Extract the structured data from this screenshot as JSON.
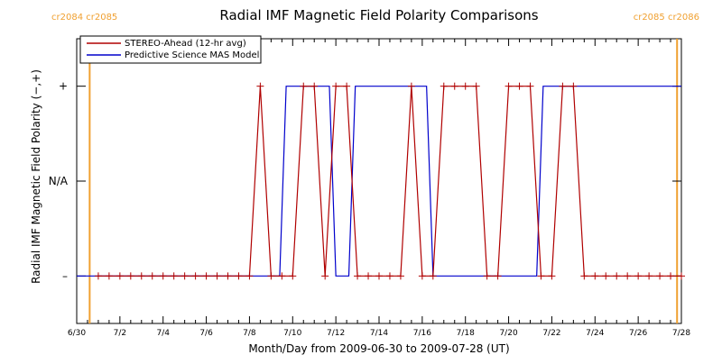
{
  "chart_data": {
    "type": "line",
    "title": "Radial IMF Magnetic Field Polarity Comparisons",
    "xlabel": "Month/Day from 2009-06-30 to 2009-07-28 (UT)",
    "ylabel": "Radial IMF Magnetic Field Polarity (−,+)",
    "x_range_days": [
      0,
      28
    ],
    "x_ticks": [
      {
        "day": 0,
        "label": "6/30"
      },
      {
        "day": 2,
        "label": "7/2"
      },
      {
        "day": 4,
        "label": "7/4"
      },
      {
        "day": 6,
        "label": "7/6"
      },
      {
        "day": 8,
        "label": "7/8"
      },
      {
        "day": 10,
        "label": "7/10"
      },
      {
        "day": 12,
        "label": "7/12"
      },
      {
        "day": 14,
        "label": "7/14"
      },
      {
        "day": 16,
        "label": "7/16"
      },
      {
        "day": 18,
        "label": "7/18"
      },
      {
        "day": 20,
        "label": "7/20"
      },
      {
        "day": 22,
        "label": "7/22"
      },
      {
        "day": 24,
        "label": "7/24"
      },
      {
        "day": 26,
        "label": "7/26"
      },
      {
        "day": 28,
        "label": "7/28"
      }
    ],
    "y_range": [
      -1.5,
      1.5
    ],
    "y_ticks": [
      {
        "value": 1,
        "label": "+"
      },
      {
        "value": 0,
        "label": "N/A"
      },
      {
        "value": -1,
        "label": "–"
      }
    ],
    "carrington_markers": [
      {
        "day": 0.6,
        "labels": [
          "cr2084",
          "cr2085"
        ]
      },
      {
        "day": 27.8,
        "labels": [
          "cr2085",
          "cr2086"
        ]
      }
    ],
    "legend": {
      "position": "top-left"
    },
    "series": [
      {
        "name": "STEREO-Ahead (12-hr avg)",
        "color": "#b00000",
        "marker": "plus",
        "x": [
          1,
          1.5,
          2,
          2.5,
          3,
          3.5,
          4,
          4.5,
          5,
          5.5,
          6,
          6.5,
          7,
          7.5,
          8,
          8.5,
          9,
          9.5,
          10,
          10.5,
          11,
          11.5,
          12,
          12.5,
          13,
          13.5,
          14,
          14.5,
          15,
          15.5,
          16,
          16.5,
          17,
          17.5,
          18,
          18.5,
          19,
          19.5,
          20,
          20.5,
          21,
          21.5,
          22,
          22.5,
          23,
          23.5,
          24,
          24.5,
          25,
          25.5,
          26,
          26.5,
          27,
          27.5,
          28
        ],
        "y": [
          -1,
          -1,
          -1,
          -1,
          -1,
          -1,
          -1,
          -1,
          -1,
          -1,
          -1,
          -1,
          -1,
          -1,
          -1,
          1,
          -1,
          -1,
          -1,
          1,
          1,
          -1,
          1,
          1,
          -1,
          -1,
          -1,
          -1,
          -1,
          1,
          -1,
          -1,
          1,
          1,
          1,
          1,
          -1,
          -1,
          1,
          1,
          1,
          -1,
          -1,
          1,
          1,
          -1,
          -1,
          -1,
          -1,
          -1,
          -1,
          -1,
          -1,
          -1,
          -1
        ]
      },
      {
        "name": "Predictive Science MAS Model",
        "color": "#0000cc",
        "marker": "none",
        "x": [
          0,
          9.4,
          9.7,
          11.7,
          12,
          12.6,
          12.9,
          16.2,
          16.5,
          21.3,
          21.6,
          28
        ],
        "y": [
          -1,
          -1,
          1,
          1,
          -1,
          -1,
          1,
          1,
          -1,
          -1,
          1,
          1
        ]
      }
    ]
  }
}
